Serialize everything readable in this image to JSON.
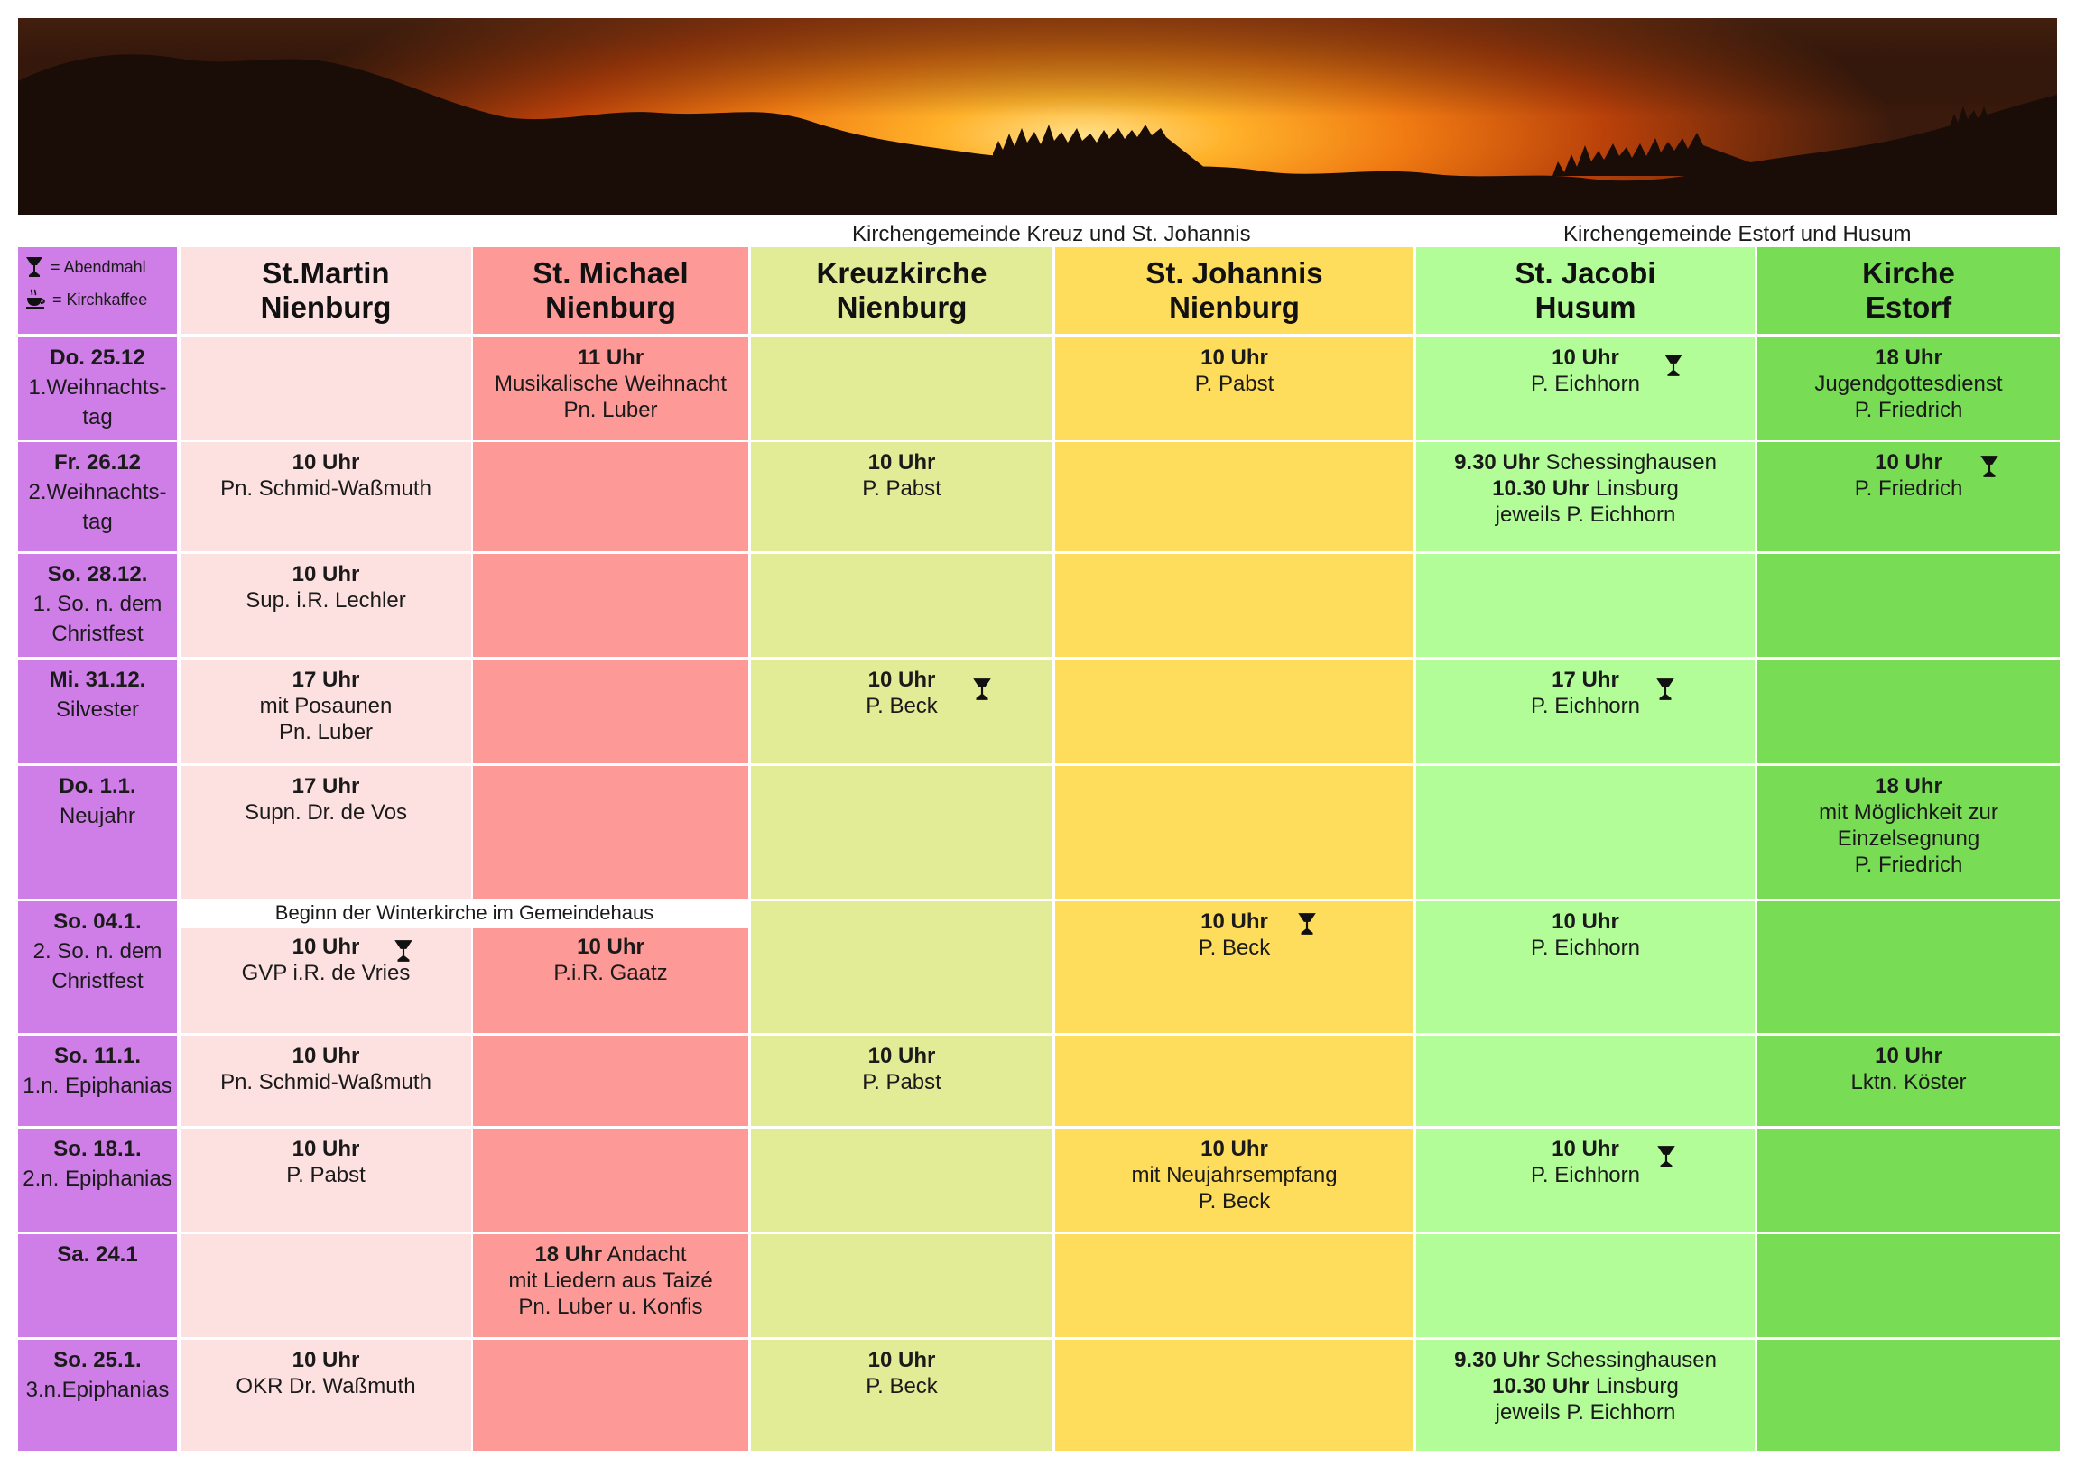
{
  "header": {
    "group_kreuz_johannis": "Kirchengemeinde Kreuz und St. Johannis",
    "group_estorf_husum": "Kirchengemeinde Estorf und Husum"
  },
  "legend": {
    "abendmahl": "= Abendmahl",
    "kirchkaffee": "= Kirchkaffee"
  },
  "columns": [
    {
      "line1": "St.Martin",
      "line2": "Nienburg"
    },
    {
      "line1": "St. Michael",
      "line2": "Nienburg"
    },
    {
      "line1": "Kreuzkirche",
      "line2": "Nienburg"
    },
    {
      "line1": "St. Johannis",
      "line2": "Nienburg"
    },
    {
      "line1": "St. Jacobi",
      "line2": "Husum"
    },
    {
      "line1": "Kirche",
      "line2": "Estorf"
    }
  ],
  "winter_note": "Beginn der Winterkirche im Gemeindehaus",
  "rows": [
    {
      "date": "Do. 25.12",
      "sub": [
        "1.Weihnachts-",
        "tag"
      ],
      "cells": [
        [],
        [
          {
            "b": "11 Uhr"
          },
          {
            "t": "Musikalische Weihnacht"
          },
          {
            "t": "Pn. Luber"
          }
        ],
        [],
        [
          {
            "b": "10 Uhr"
          },
          {
            "t": "P. Pabst"
          }
        ],
        [
          {
            "b": "10 Uhr"
          },
          {
            "t": "P. Eichhorn"
          }
        ],
        [
          {
            "b": "18 Uhr"
          },
          {
            "t": "Jugendgottesdienst"
          },
          {
            "t": "P. Friedrich"
          }
        ]
      ]
    },
    {
      "date": "Fr. 26.12",
      "sub": [
        "2.Weihnachts-",
        "tag"
      ],
      "cells": [
        [
          {
            "b": "10 Uhr"
          },
          {
            "t": "Pn. Schmid-Waßmuth"
          }
        ],
        [],
        [
          {
            "b": "10 Uhr"
          },
          {
            "t": "P. Pabst"
          }
        ],
        [],
        [
          {
            "b": "9.30 Uhr",
            "t": " Schessinghausen"
          },
          {
            "b": "10.30 Uhr",
            "t": " Linsburg"
          },
          {
            "t": "jeweils P. Eichhorn"
          }
        ],
        [
          {
            "b": "10 Uhr"
          },
          {
            "t": "P. Friedrich"
          }
        ]
      ]
    },
    {
      "date": "So. 28.12.",
      "sub": [
        "1. So. n. dem",
        "Christfest"
      ],
      "cells": [
        [
          {
            "b": "10 Uhr"
          },
          {
            "t": "Sup. i.R. Lechler"
          }
        ],
        [],
        [],
        [],
        [],
        []
      ]
    },
    {
      "date": "Mi. 31.12.",
      "sub": [
        "Silvester"
      ],
      "cells": [
        [
          {
            "b": "17 Uhr"
          },
          {
            "t": "mit Posaunen"
          },
          {
            "t": "Pn. Luber"
          }
        ],
        [],
        [
          {
            "b": "10 Uhr"
          },
          {
            "t": "P. Beck"
          }
        ],
        [],
        [
          {
            "b": "17 Uhr"
          },
          {
            "t": "P. Eichhorn"
          }
        ],
        []
      ]
    },
    {
      "date": "Do. 1.1.",
      "sub": [
        "Neujahr"
      ],
      "cells": [
        [
          {
            "b": "17 Uhr"
          },
          {
            "t": "Supn. Dr. de Vos"
          }
        ],
        [],
        [],
        [],
        [],
        [
          {
            "b": "18 Uhr"
          },
          {
            "t": "mit Möglichkeit zur"
          },
          {
            "t": "Einzelsegnung"
          },
          {
            "t": "P. Friedrich"
          }
        ]
      ]
    },
    {
      "date": "So. 04.1.",
      "sub": [
        "2. So. n. dem",
        "Christfest"
      ],
      "cells": [
        [
          {
            "b": "10 Uhr"
          },
          {
            "t": "GVP i.R. de Vries"
          }
        ],
        [
          {
            "b": "10 Uhr"
          },
          {
            "t": "P.i.R. Gaatz"
          }
        ],
        [],
        [
          {
            "b": "10 Uhr"
          },
          {
            "t": "P. Beck"
          }
        ],
        [
          {
            "b": "10 Uhr"
          },
          {
            "t": "P. Eichhorn"
          }
        ],
        []
      ]
    },
    {
      "date": "So. 11.1.",
      "sub": [
        "1.n. Epiphanias"
      ],
      "cells": [
        [
          {
            "b": "10 Uhr"
          },
          {
            "t": "Pn. Schmid-Waßmuth"
          }
        ],
        [],
        [
          {
            "b": "10 Uhr"
          },
          {
            "t": "P. Pabst"
          }
        ],
        [],
        [],
        [
          {
            "b": "10 Uhr"
          },
          {
            "t": "Lktn. Köster"
          }
        ]
      ]
    },
    {
      "date": "So. 18.1.",
      "sub": [
        "2.n. Epiphanias"
      ],
      "cells": [
        [
          {
            "b": "10 Uhr"
          },
          {
            "t": "P. Pabst"
          }
        ],
        [],
        [],
        [
          {
            "b": "10 Uhr"
          },
          {
            "t": "mit Neujahrsempfang"
          },
          {
            "t": "P. Beck"
          }
        ],
        [
          {
            "b": "10 Uhr"
          },
          {
            "t": "P. Eichhorn"
          }
        ],
        []
      ]
    },
    {
      "date": "Sa. 24.1",
      "sub": [],
      "cells": [
        [],
        [
          {
            "b": "18 Uhr",
            "t": " Andacht"
          },
          {
            "t": "mit Liedern aus Taizé"
          },
          {
            "t": "Pn. Luber u. Konfis"
          }
        ],
        [],
        [],
        [],
        []
      ]
    },
    {
      "date": "So. 25.1.",
      "sub": [
        "3.n.Epiphanias"
      ],
      "cells": [
        [
          {
            "b": "10 Uhr"
          },
          {
            "t": "OKR Dr. Waßmuth"
          }
        ],
        [],
        [
          {
            "b": "10 Uhr"
          },
          {
            "t": "P. Beck"
          }
        ],
        [],
        [
          {
            "b": "9.30 Uhr",
            "t": " Schessinghausen"
          },
          {
            "b": "10.30 Uhr",
            "t": " Linsburg"
          },
          {
            "t": "jeweils P. Eichhorn"
          }
        ],
        []
      ]
    }
  ],
  "abendmahl_marks": [
    {
      "row": 0,
      "col": 4
    },
    {
      "row": 1,
      "col": 5
    },
    {
      "row": 3,
      "col": 2
    },
    {
      "row": 3,
      "col": 4
    },
    {
      "row": 5,
      "col": 0
    },
    {
      "row": 5,
      "col": 3
    },
    {
      "row": 7,
      "col": 4
    }
  ]
}
